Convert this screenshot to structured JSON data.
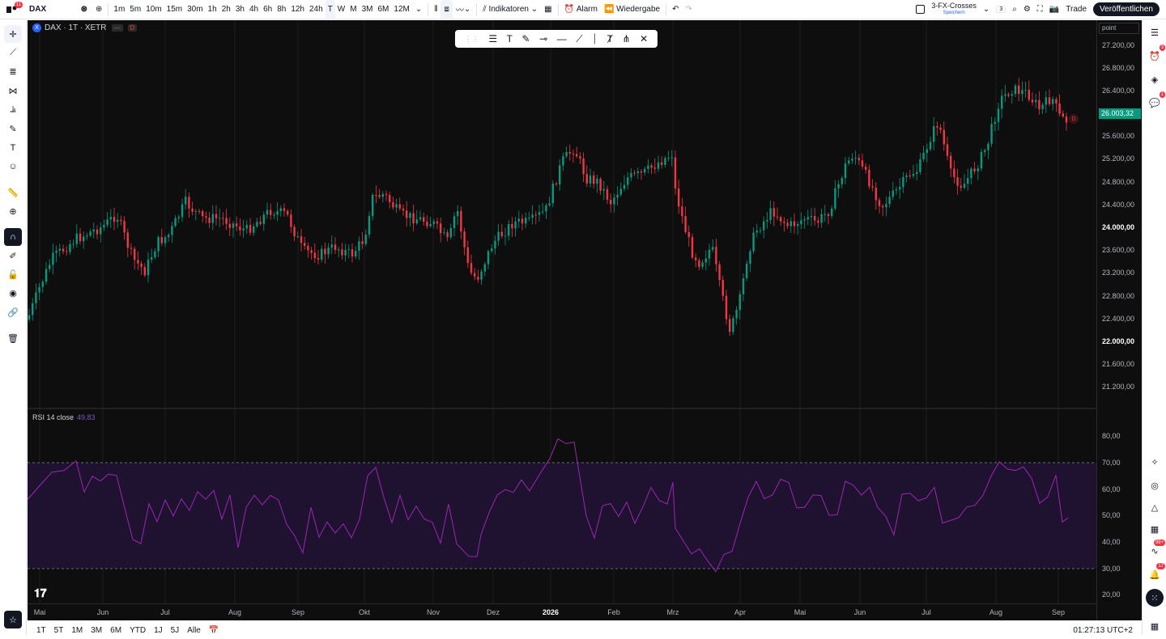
{
  "topbar": {
    "logo_badge": "11",
    "symbol": "DAX",
    "timeframes": [
      "1m",
      "5m",
      "10m",
      "15m",
      "30m",
      "1h",
      "2h",
      "3h",
      "4h",
      "6h",
      "8h",
      "12h",
      "24h",
      "T",
      "W",
      "M",
      "3M",
      "6M",
      "12M"
    ],
    "active_timeframe": "T",
    "indicators_label": "Indikatoren",
    "alarm_label": "Alarm",
    "replay_label": "Wiedergabe",
    "layout_name": "3-FX-Crosses",
    "layout_sub": "Speichern",
    "layout_count": "3",
    "trade_label": "Trade",
    "publish_label": "Veröffentlichen"
  },
  "legend": {
    "symbol_icon": "X",
    "title": "DAX · 1T · XETR",
    "badge1": "—",
    "badge2": "D"
  },
  "drawing_toolbar": {
    "icons": [
      "drag-handle-icon",
      "multi-line-icon",
      "text-icon",
      "brush-icon",
      "horizontal-ray-icon",
      "horizontal-line-icon",
      "trend-line-icon",
      "vertical-line-icon",
      "text-anchor-icon",
      "pitchfork-icon",
      "cross-icon"
    ]
  },
  "price_axis": {
    "unit": "point",
    "labels": [
      "27.200,00",
      "26.800,00",
      "26.400,00",
      "25.600,00",
      "25.200,00",
      "24.800,00",
      "24.400,00",
      "24.000,00",
      "23.600,00",
      "23.200,00",
      "22.800,00",
      "22.400,00",
      "22.000,00",
      "21.600,00",
      "21.200,00"
    ],
    "bold_labels": [
      "24.000,00",
      "22.000,00"
    ],
    "current_price": "26.003,32",
    "current_color": "#089981"
  },
  "rsi": {
    "label": "RSI 14 close",
    "value": "49,83",
    "axis_labels": [
      "80,00",
      "70,00",
      "60,00",
      "50,00",
      "40,00",
      "30,00",
      "20,00"
    ],
    "line_color": "#9c27b0",
    "band_color": "#1e1230",
    "upper": 70,
    "lower": 30
  },
  "time_axis": {
    "labels": [
      "Mai",
      "Jun",
      "Jul",
      "Aug",
      "Sep",
      "Okt",
      "Nov",
      "Dez",
      "2026",
      "Feb",
      "Mrz",
      "Apr",
      "Mai",
      "Jun",
      "Jul",
      "Aug",
      "Sep"
    ],
    "bold_label": "2026"
  },
  "bottombar": {
    "ranges": [
      "1T",
      "5T",
      "1M",
      "3M",
      "6M",
      "YTD",
      "1J",
      "5J",
      "Alle"
    ],
    "clock": "01:27:13 UTC+2"
  },
  "right_badges": {
    "alerts": "3",
    "chat": "1",
    "news": "99+",
    "notifications": "17"
  },
  "colors": {
    "up": "#089981",
    "down": "#f23645",
    "background": "#0e0e0e"
  },
  "series_marker": "D"
}
